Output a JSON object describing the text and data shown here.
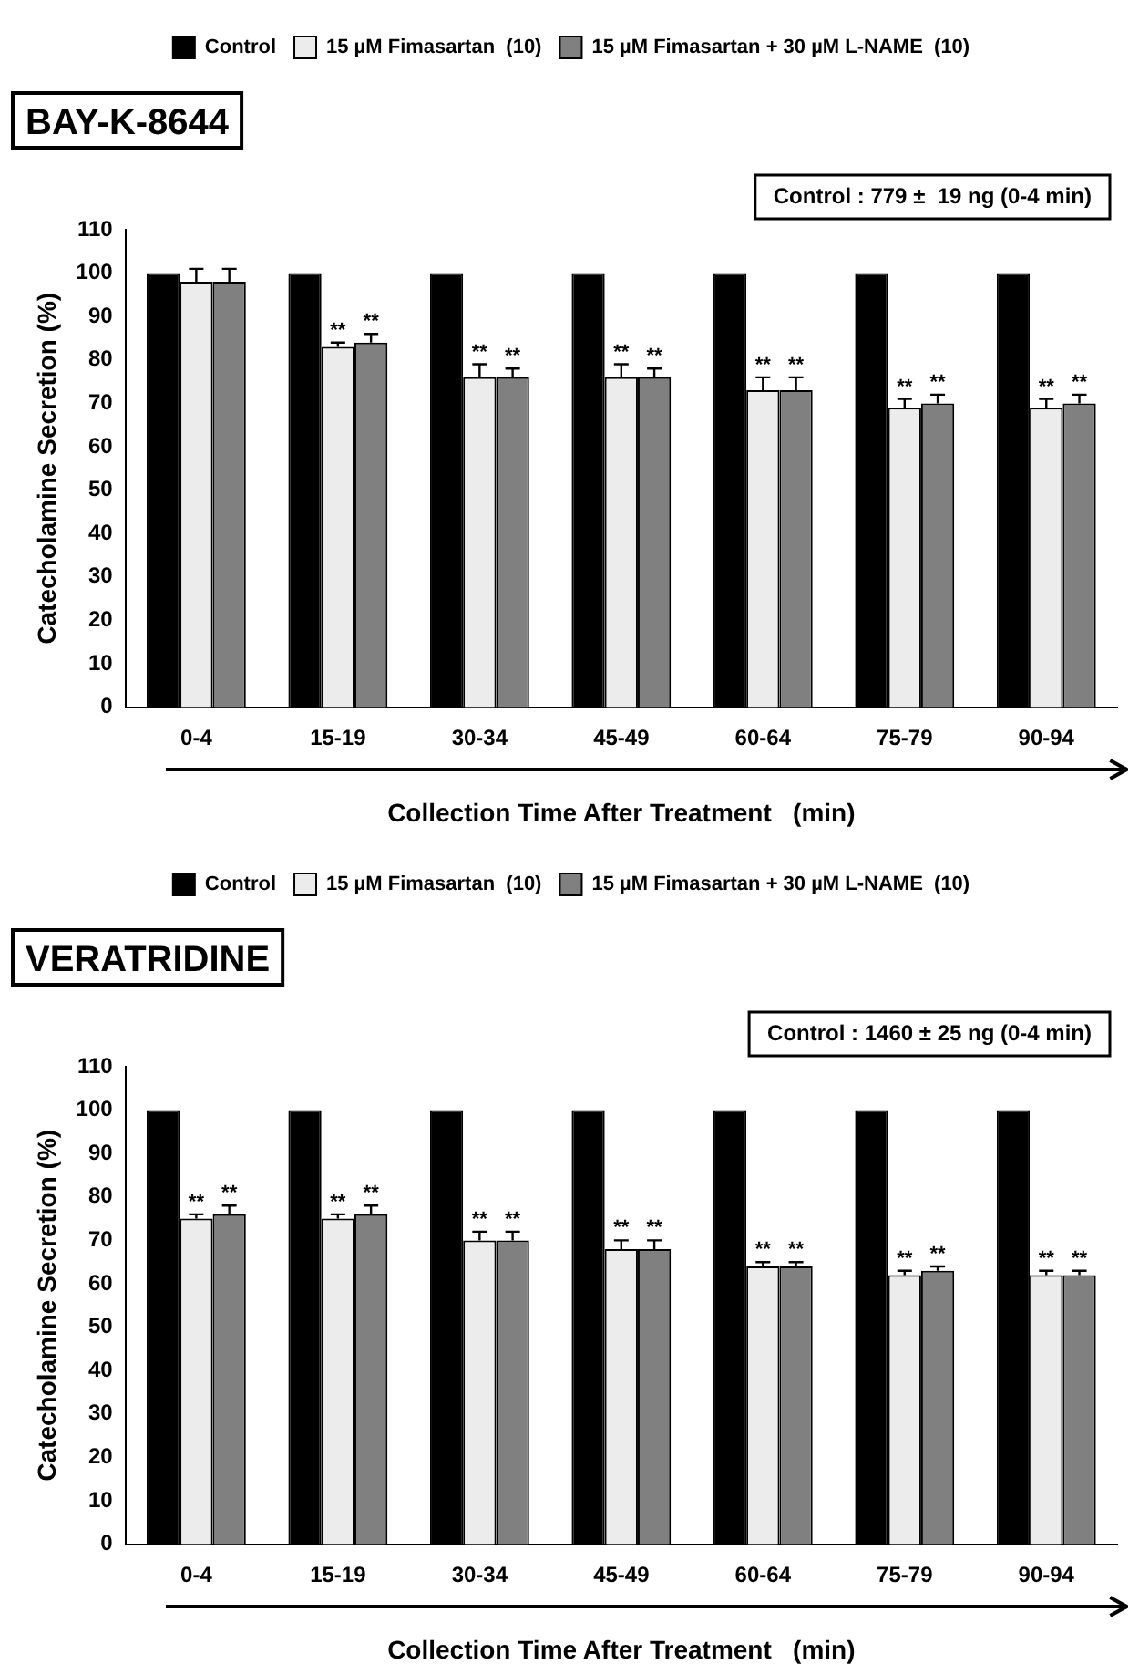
{
  "chart_data": [
    {
      "type": "bar",
      "title": "BAY-K-8644",
      "xlabel": "Collection Time After Treatment   (min)",
      "ylabel": "Catecholamine Secretion (%)",
      "annotations": [
        "Control : 779 ±  19 ng (0-4 min)"
      ],
      "categories": [
        "0-4",
        "15-19",
        "30-34",
        "45-49",
        "60-64",
        "75-79",
        "90-94"
      ],
      "series": [
        {
          "name": "Control",
          "color": "#000000",
          "values": [
            100,
            100,
            100,
            100,
            100,
            100,
            100
          ]
        },
        {
          "name": "15 µM Fimasartan  (10)",
          "color": "#ececec",
          "values": [
            98,
            83,
            76,
            76,
            73,
            69,
            69
          ],
          "errors": [
            3,
            1,
            3,
            3,
            3,
            2,
            2
          ],
          "value_labels": [
            null,
            "**",
            "**",
            "**",
            "**",
            "**",
            "**"
          ]
        },
        {
          "name": "15 µM Fimasartan + 30 µM L-NAME  (10)",
          "color": "#808080",
          "values": [
            98,
            84,
            76,
            76,
            73,
            70,
            70
          ],
          "errors": [
            3,
            2,
            2,
            2,
            3,
            2,
            2
          ],
          "value_labels": [
            null,
            "**",
            "**",
            "**",
            "**",
            "**",
            "**"
          ]
        }
      ],
      "ylim": [
        0,
        110
      ],
      "yticks": [
        0,
        10,
        20,
        30,
        40,
        50,
        60,
        70,
        80,
        90,
        100,
        110
      ],
      "grid": false,
      "legend": "top"
    },
    {
      "type": "bar",
      "title": "VERATRIDINE",
      "xlabel": "Collection Time After Treatment   (min)",
      "ylabel": "Catecholamine Secretion (%)",
      "annotations": [
        "Control : 1460 ± 25 ng (0-4 min)"
      ],
      "categories": [
        "0-4",
        "15-19",
        "30-34",
        "45-49",
        "60-64",
        "75-79",
        "90-94"
      ],
      "series": [
        {
          "name": "Control",
          "color": "#000000",
          "values": [
            100,
            100,
            100,
            100,
            100,
            100,
            100
          ]
        },
        {
          "name": "15 µM Fimasartan  (10)",
          "color": "#ececec",
          "values": [
            75,
            75,
            70,
            68,
            64,
            62,
            62
          ],
          "errors": [
            1,
            1,
            2,
            2,
            1,
            1,
            1
          ],
          "value_labels": [
            "**",
            "**",
            "**",
            "**",
            "**",
            "**",
            "**"
          ]
        },
        {
          "name": "15 µM Fimasartan + 30 µM L-NAME  (10)",
          "color": "#808080",
          "values": [
            76,
            76,
            70,
            68,
            64,
            63,
            62
          ],
          "errors": [
            2,
            2,
            2,
            2,
            1,
            1,
            1
          ],
          "value_labels": [
            "**",
            "**",
            "**",
            "**",
            "**",
            "**",
            "**"
          ]
        }
      ],
      "ylim": [
        0,
        110
      ],
      "yticks": [
        0,
        10,
        20,
        30,
        40,
        50,
        60,
        70,
        80,
        90,
        100,
        110
      ],
      "grid": false,
      "legend": "top"
    }
  ]
}
